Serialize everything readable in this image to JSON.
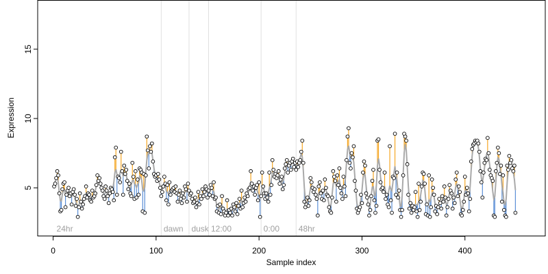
{
  "chart_data": {
    "type": "scatter",
    "xlabel": "Sample index",
    "ylabel": "Expression",
    "x_ticks": [
      0,
      100,
      200,
      300,
      400
    ],
    "y_ticks": [
      5,
      10,
      15
    ],
    "xlim": [
      -15,
      478
    ],
    "ylim": [
      1.5,
      18.5
    ],
    "regions": [
      {
        "label": "24hr",
        "start": 2,
        "boundary": null
      },
      {
        "label": "dawn",
        "start": 106,
        "boundary": 105
      },
      {
        "label": "dusk",
        "start": 133,
        "boundary": 132
      },
      {
        "label": "12:00",
        "start": 152,
        "boundary": 151
      },
      {
        "label": "0:00",
        "start": 203,
        "boundary": 202
      },
      {
        "label": "48hr",
        "start": 237,
        "boundary": 236
      }
    ],
    "colors": {
      "above_fit": "#f5a623",
      "below_fit": "#5b8fd6",
      "fit_line": "#a9a9a9",
      "region_line": "#e0e0e0",
      "point_stroke": "#000000",
      "point_fill": "#ffffff"
    },
    "series": [
      {
        "values": [
          5.1,
          5.3,
          5.7,
          6.2,
          5.9,
          4.6,
          3.3,
          3.4,
          4.9,
          5.3,
          5.4,
          3.6,
          4.5,
          4.8,
          5.0,
          4.4,
          4.6,
          3.8,
          4.7,
          4.9,
          4.5,
          3.7,
          4.2,
          2.9,
          3.6,
          4.6,
          4.0,
          3.5,
          3.8,
          4.2,
          4.4,
          5.1,
          4.3,
          4.6,
          4.5,
          4.1,
          4.0,
          4.8,
          4.3,
          4.4,
          4.6,
          5.2,
          5.9,
          5.5,
          5.7,
          5.3,
          5.0,
          4.8,
          4.4,
          4.2,
          5.1,
          4.8,
          4.4,
          3.9,
          4.6,
          5.0,
          4.9,
          4.7,
          4.1,
          7.2,
          7.9,
          4.5,
          5.8,
          5.7,
          5.4,
          7.6,
          6.2,
          4.5,
          6.6,
          6.0,
          6.3,
          5.5,
          4.9,
          5.3,
          4.6,
          4.4,
          6.8,
          5.8,
          4.2,
          6.2,
          4.3,
          5.6,
          4.5,
          6.4,
          6.3,
          6.1,
          3.3,
          6.0,
          3.2,
          5.9,
          8.7,
          7.7,
          6.4,
          8.0,
          7.6,
          8.2,
          6.9,
          6.0,
          5.8,
          5.9,
          5.5,
          6.0,
          5.6,
          5.0,
          4.4,
          4.7,
          5.1,
          5.8,
          5.3,
          4.1,
          5.2,
          3.8,
          5.4,
          4.5,
          4.8,
          4.9,
          5.0,
          4.7,
          5.1,
          4.6,
          4.0,
          4.5,
          4.8,
          4.2,
          3.9,
          4.6,
          4.3,
          5.1,
          4.9,
          4.0,
          5.3,
          4.8,
          4.5,
          4.6,
          4.2,
          3.9,
          4.0,
          4.3,
          3.6,
          3.9,
          4.7,
          3.8,
          4.4,
          4.2,
          4.9,
          4.4,
          4.7,
          5.1,
          4.9,
          4.3,
          4.8,
          4.5,
          5.2,
          5.0,
          4.4,
          5.4,
          4.2,
          4.3,
          3.3,
          3.7,
          3.2,
          3.8,
          3.1,
          4.4,
          3.5,
          3.3,
          3.0,
          3.2,
          4.1,
          3.0,
          3.4,
          3.2,
          3.5,
          3.0,
          3.8,
          3.6,
          3.3,
          3.9,
          3.1,
          3.7,
          4.2,
          3.5,
          4.8,
          3.6,
          3.9,
          4.3,
          4.0,
          4.6,
          4.4,
          4.9,
          5.0,
          6.2,
          5.3,
          4.8,
          5.1,
          4.5,
          5.0,
          5.2,
          4.1,
          5.4,
          2.9,
          4.4,
          6.1,
          5.1,
          4.6,
          4.2,
          4.6,
          4.3,
          4.0,
          6.1,
          4.5,
          5.2,
          7.0,
          6.3,
          5.8,
          6.0,
          5.7,
          5.9,
          6.2,
          5.3,
          5.6,
          5.8,
          4.9,
          5.2,
          6.4,
          6.7,
          7.0,
          6.1,
          6.6,
          6.8,
          6.3,
          6.9,
          7.1,
          6.5,
          6.8,
          6.3,
          6.9,
          6.5,
          6.8,
          7.0,
          7.6,
          8.4,
          6.8,
          4.0,
          3.6,
          3.8,
          4.3,
          3.7,
          4.1,
          5.7,
          5.4,
          5.0,
          4.7,
          4.9,
          4.5,
          4.2,
          3.0,
          5.1,
          5.4,
          4.6,
          4.2,
          4.8,
          4.1,
          5.6,
          5.0,
          4.5,
          4.4,
          3.6,
          3.3,
          3.2,
          4.3,
          6.2,
          5.8,
          5.5,
          4.0,
          5.9,
          5.2,
          6.4,
          5.0,
          4.6,
          4.2,
          5.8,
          5.1,
          4.4,
          7.0,
          8.7,
          9.3,
          6.8,
          6.4,
          7.5,
          7.2,
          8.0,
          5.5,
          4.8,
          3.5,
          3.2,
          3.4,
          3.6,
          4.5,
          3.9,
          6.1,
          6.9,
          6.6,
          4.6,
          4.3,
          3.8,
          3.0,
          3.4,
          4.4,
          5.5,
          6.3,
          4.1,
          3.2,
          3.7,
          8.4,
          8.5,
          6.3,
          5.4,
          4.9,
          5.0,
          4.7,
          6.1,
          4.2,
          4.5,
          3.8,
          3.6,
          8.0,
          4.1,
          3.2,
          5.8,
          5.7,
          8.9,
          4.5,
          6.1,
          4.3,
          4.8,
          3.4,
          2.9,
          3.4,
          5.9,
          8.9,
          8.7,
          8.4,
          6.7,
          4.5,
          3.5,
          3.9,
          3.2,
          3.7,
          3.4,
          3.6,
          4.7,
          3.3,
          2.9,
          5.3,
          3.4,
          4.0,
          5.1,
          6.1,
          6.0,
          5.3,
          3.1,
          3.8,
          3.0,
          5.9,
          2.9,
          3.6,
          5.6,
          5.0,
          4.5,
          3.3,
          3.7,
          3.1,
          3.6,
          4.2,
          3.9,
          3.5,
          4.4,
          4.0,
          5.1,
          4.3,
          3.0,
          3.6,
          4.2,
          5.2,
          4.8,
          4.6,
          3.5,
          4.3,
          3.9,
          5.6,
          6.1,
          4.4,
          5.1,
          4.7,
          3.1,
          3.0,
          3.4,
          4.0,
          5.8,
          4.5,
          5.0,
          4.6,
          3.3,
          4.2,
          6.9,
          7.8,
          8.1,
          8.2,
          8.4,
          8.3,
          8.4,
          8.2,
          7.6,
          6.2,
          5.4,
          4.3,
          6.1,
          6.8,
          7.1,
          7.0,
          8.6,
          7.5,
          6.3,
          5.9,
          5.7,
          5.5,
          3.0,
          2.9,
          6.2,
          6.8,
          7.9,
          7.5,
          6.0,
          6.6,
          4.0,
          5.9,
          3.4,
          3.0,
          2.9,
          6.6,
          6.3,
          7.3,
          6.8,
          7.0,
          6.4,
          6.2,
          6.6,
          3.2
        ]
      }
    ]
  }
}
